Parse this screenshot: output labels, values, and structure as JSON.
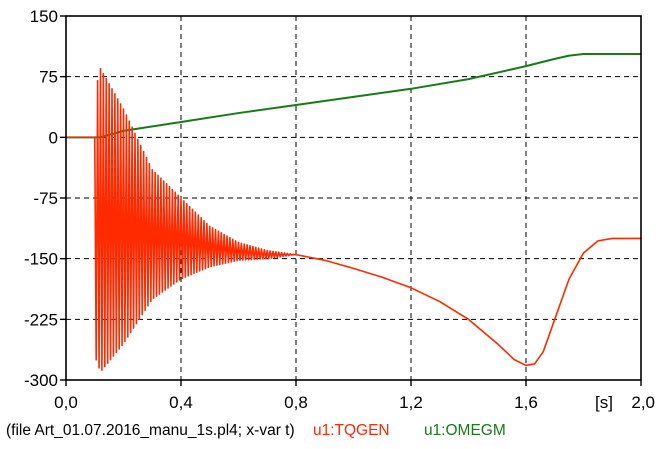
{
  "chart_data": {
    "type": "line",
    "x_unit_label": "[s]",
    "xlim": [
      0.0,
      2.0
    ],
    "ylim": [
      -300,
      150
    ],
    "x_ticks": [
      "0,0",
      "0,4",
      "0,8",
      "1,2",
      "1,6",
      "2,0"
    ],
    "x_tick_values": [
      0.0,
      0.4,
      0.8,
      1.2,
      1.6,
      2.0
    ],
    "y_ticks": [
      "150",
      "75",
      "0",
      "-75",
      "-150",
      "-225",
      "-300"
    ],
    "y_tick_values": [
      150,
      75,
      0,
      -75,
      -150,
      -225,
      -300
    ],
    "grid": true,
    "footer_file": "(file Art_01.07.2016_manu_1s.pl4; x-var t)",
    "series": [
      {
        "name": "u1:TQGEN",
        "color": "#ff2a00",
        "oscillation": {
          "start": 0.1,
          "end": 0.8,
          "cycle_period": 0.01,
          "peaks": [
            [
              0.1,
              55
            ],
            [
              0.12,
              85
            ],
            [
              0.2,
              35
            ],
            [
              0.3,
              -40
            ],
            [
              0.4,
              -75
            ],
            [
              0.5,
              -110
            ],
            [
              0.6,
              -130
            ],
            [
              0.7,
              -140
            ],
            [
              0.8,
              -145
            ]
          ],
          "troughs": [
            [
              0.1,
              -270
            ],
            [
              0.12,
              -290
            ],
            [
              0.2,
              -255
            ],
            [
              0.3,
              -200
            ],
            [
              0.4,
              -175
            ],
            [
              0.5,
              -160
            ],
            [
              0.6,
              -152
            ],
            [
              0.7,
              -150
            ],
            [
              0.8,
              -145
            ]
          ]
        },
        "points": [
          [
            0.0,
            0
          ],
          [
            0.1,
            0
          ],
          [
            0.8,
            -145
          ],
          [
            0.9,
            -152
          ],
          [
            1.0,
            -162
          ],
          [
            1.1,
            -173
          ],
          [
            1.2,
            -186
          ],
          [
            1.3,
            -203
          ],
          [
            1.4,
            -225
          ],
          [
            1.5,
            -255
          ],
          [
            1.56,
            -275
          ],
          [
            1.6,
            -282
          ],
          [
            1.63,
            -280
          ],
          [
            1.66,
            -265
          ],
          [
            1.7,
            -225
          ],
          [
            1.75,
            -175
          ],
          [
            1.8,
            -143
          ],
          [
            1.85,
            -128
          ],
          [
            1.9,
            -125
          ],
          [
            2.0,
            -125
          ]
        ]
      },
      {
        "name": "u1:OMEGM",
        "color": "#1a7a1a",
        "points": [
          [
            0.0,
            0
          ],
          [
            0.12,
            0
          ],
          [
            0.2,
            8
          ],
          [
            0.4,
            19
          ],
          [
            0.6,
            30
          ],
          [
            0.8,
            40
          ],
          [
            1.0,
            50
          ],
          [
            1.2,
            60
          ],
          [
            1.4,
            72
          ],
          [
            1.6,
            88
          ],
          [
            1.7,
            97
          ],
          [
            1.75,
            101
          ],
          [
            1.8,
            103
          ],
          [
            2.0,
            103
          ]
        ]
      }
    ]
  }
}
